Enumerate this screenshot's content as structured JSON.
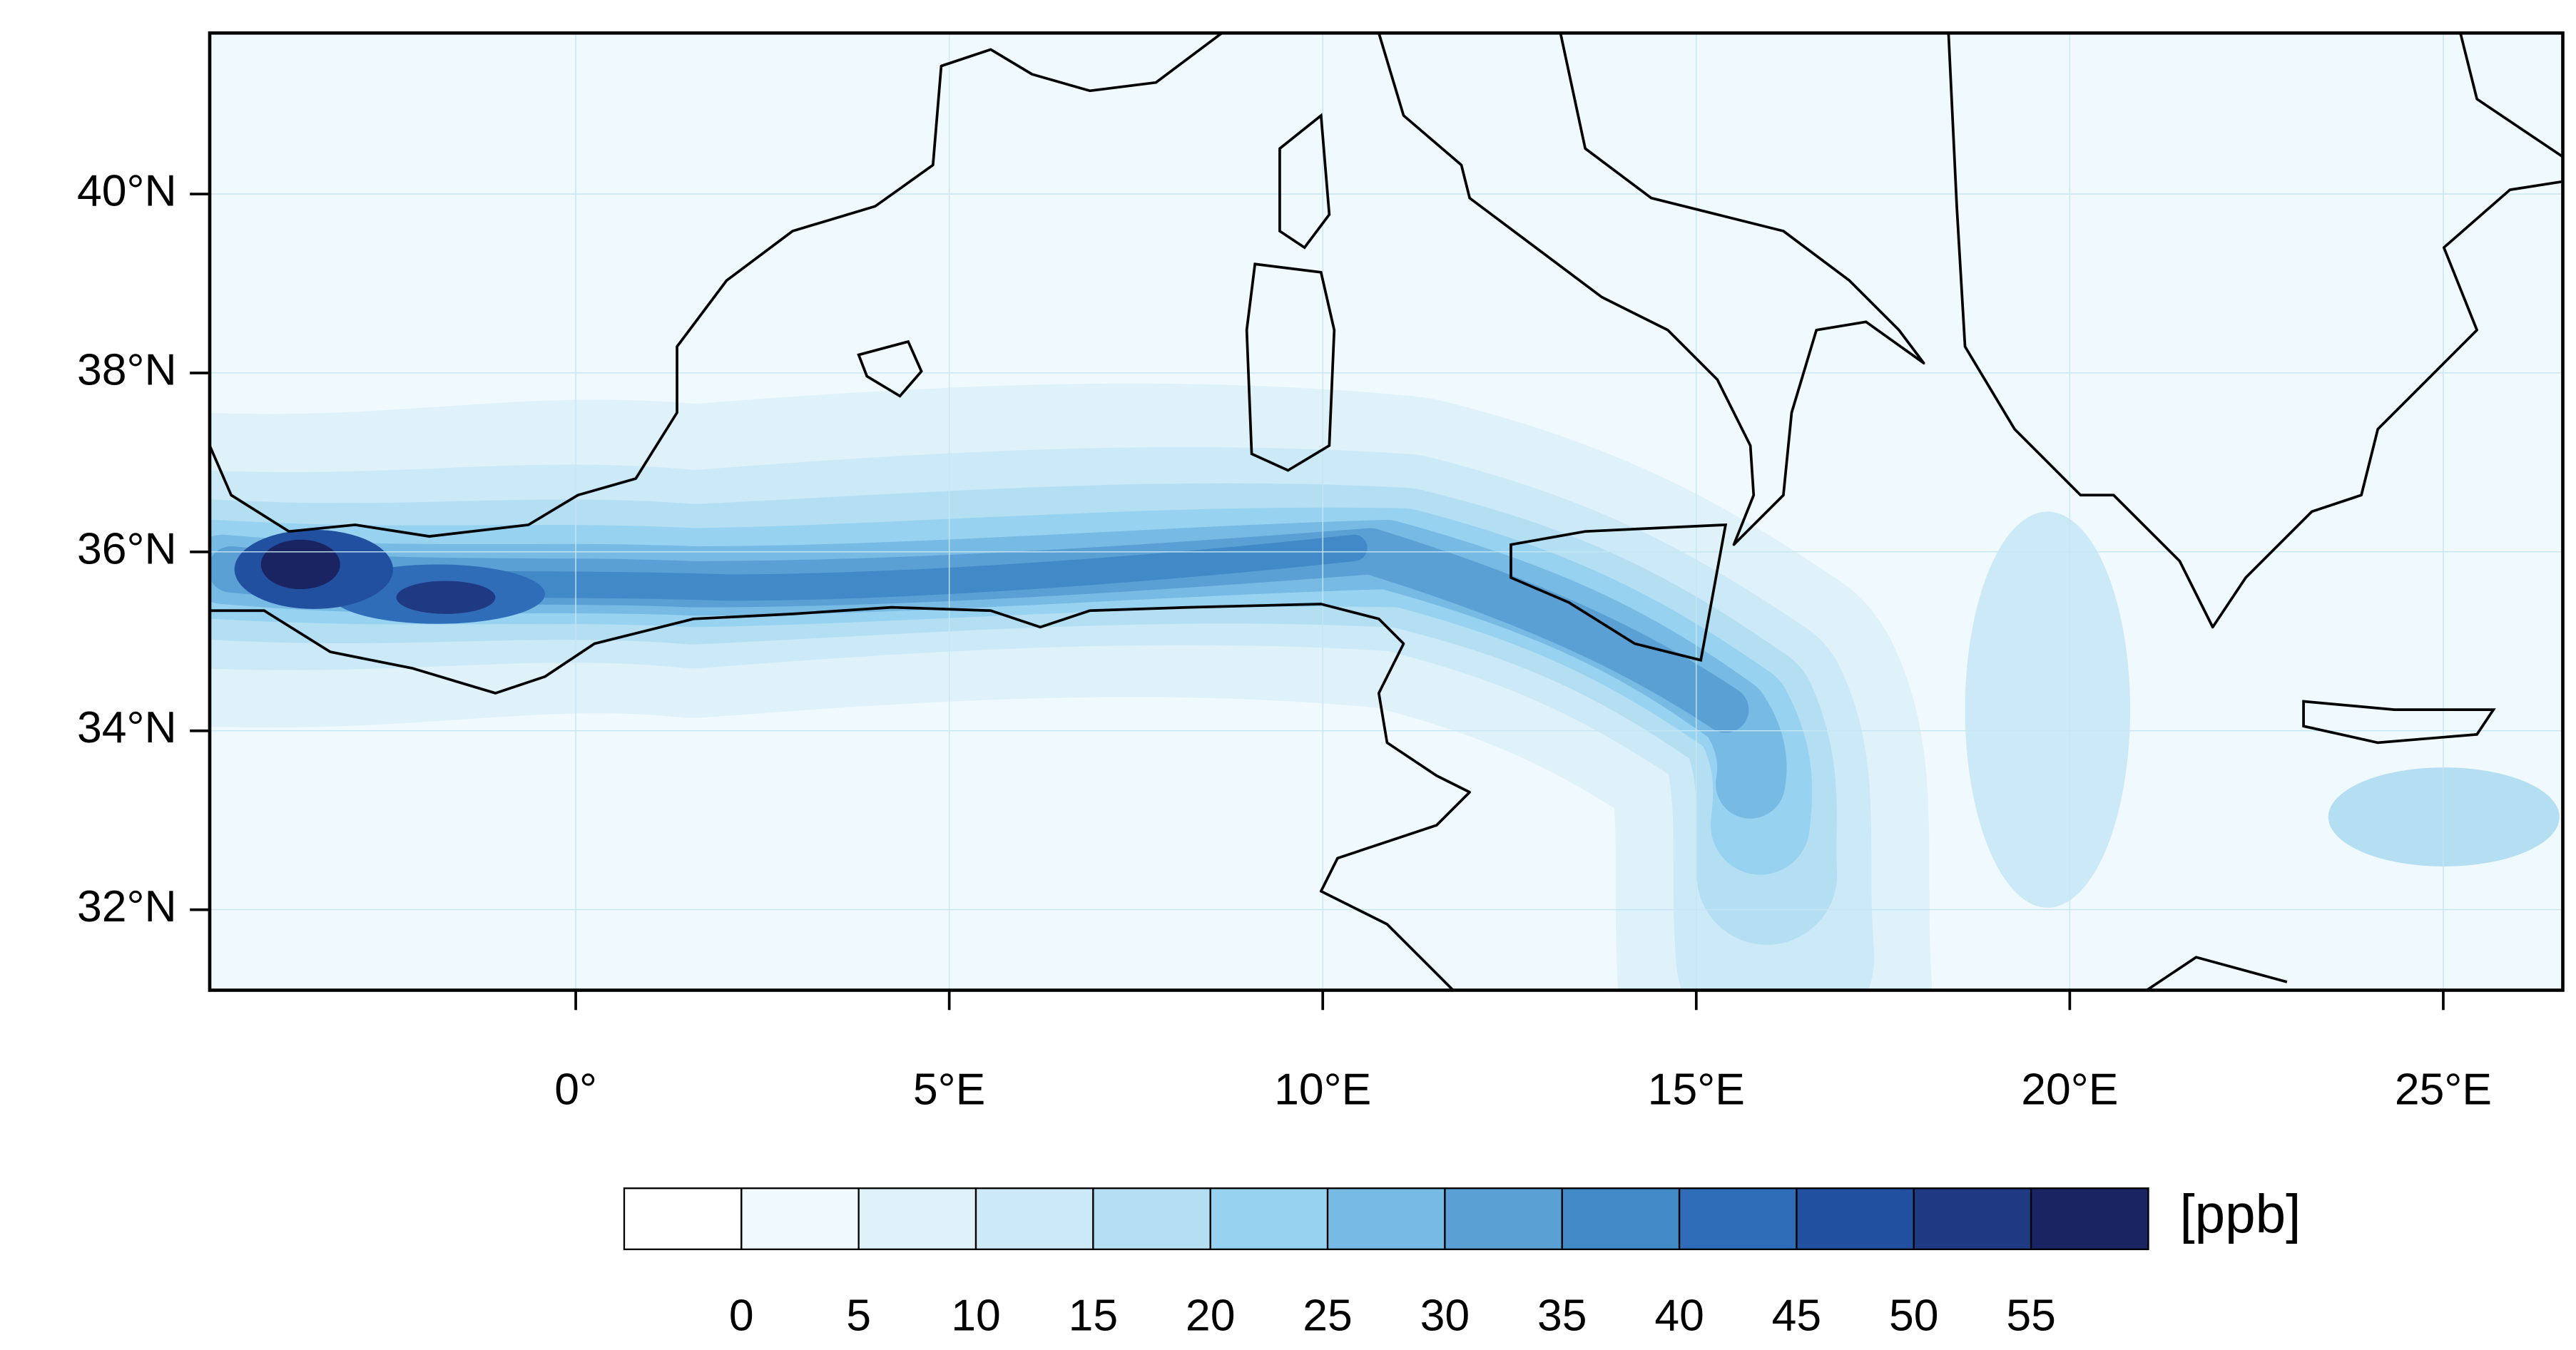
{
  "map": {
    "lat_ticks": [
      {
        "value": 40,
        "label": "40°N"
      },
      {
        "value": 38,
        "label": "38°N"
      },
      {
        "value": 36,
        "label": "36°N"
      },
      {
        "value": 34,
        "label": "34°N"
      },
      {
        "value": 32,
        "label": "32°N"
      }
    ],
    "lon_ticks": [
      {
        "value": 0,
        "label": "0°"
      },
      {
        "value": 5,
        "label": "5°E"
      },
      {
        "value": 10,
        "label": "10°E"
      },
      {
        "value": 15,
        "label": "15°E"
      },
      {
        "value": 20,
        "label": "20°E"
      },
      {
        "value": 25,
        "label": "25°E"
      }
    ],
    "lon_range": [
      -4.9,
      26.6
    ],
    "lat_range": [
      31.1,
      41.8
    ]
  },
  "colorbar": {
    "levels": [
      0,
      5,
      10,
      15,
      20,
      25,
      30,
      35,
      40,
      45,
      50,
      55
    ],
    "colors": [
      "#ffffff",
      "#f0f9fd",
      "#dff2fa",
      "#cce9f7",
      "#b4dff3",
      "#97d2f0",
      "#77bae3",
      "#5aa0d4",
      "#4289c8",
      "#2f6db9",
      "#2150a0",
      "#1f3a82",
      "#1b2462"
    ],
    "unit": "[ppb]"
  }
}
